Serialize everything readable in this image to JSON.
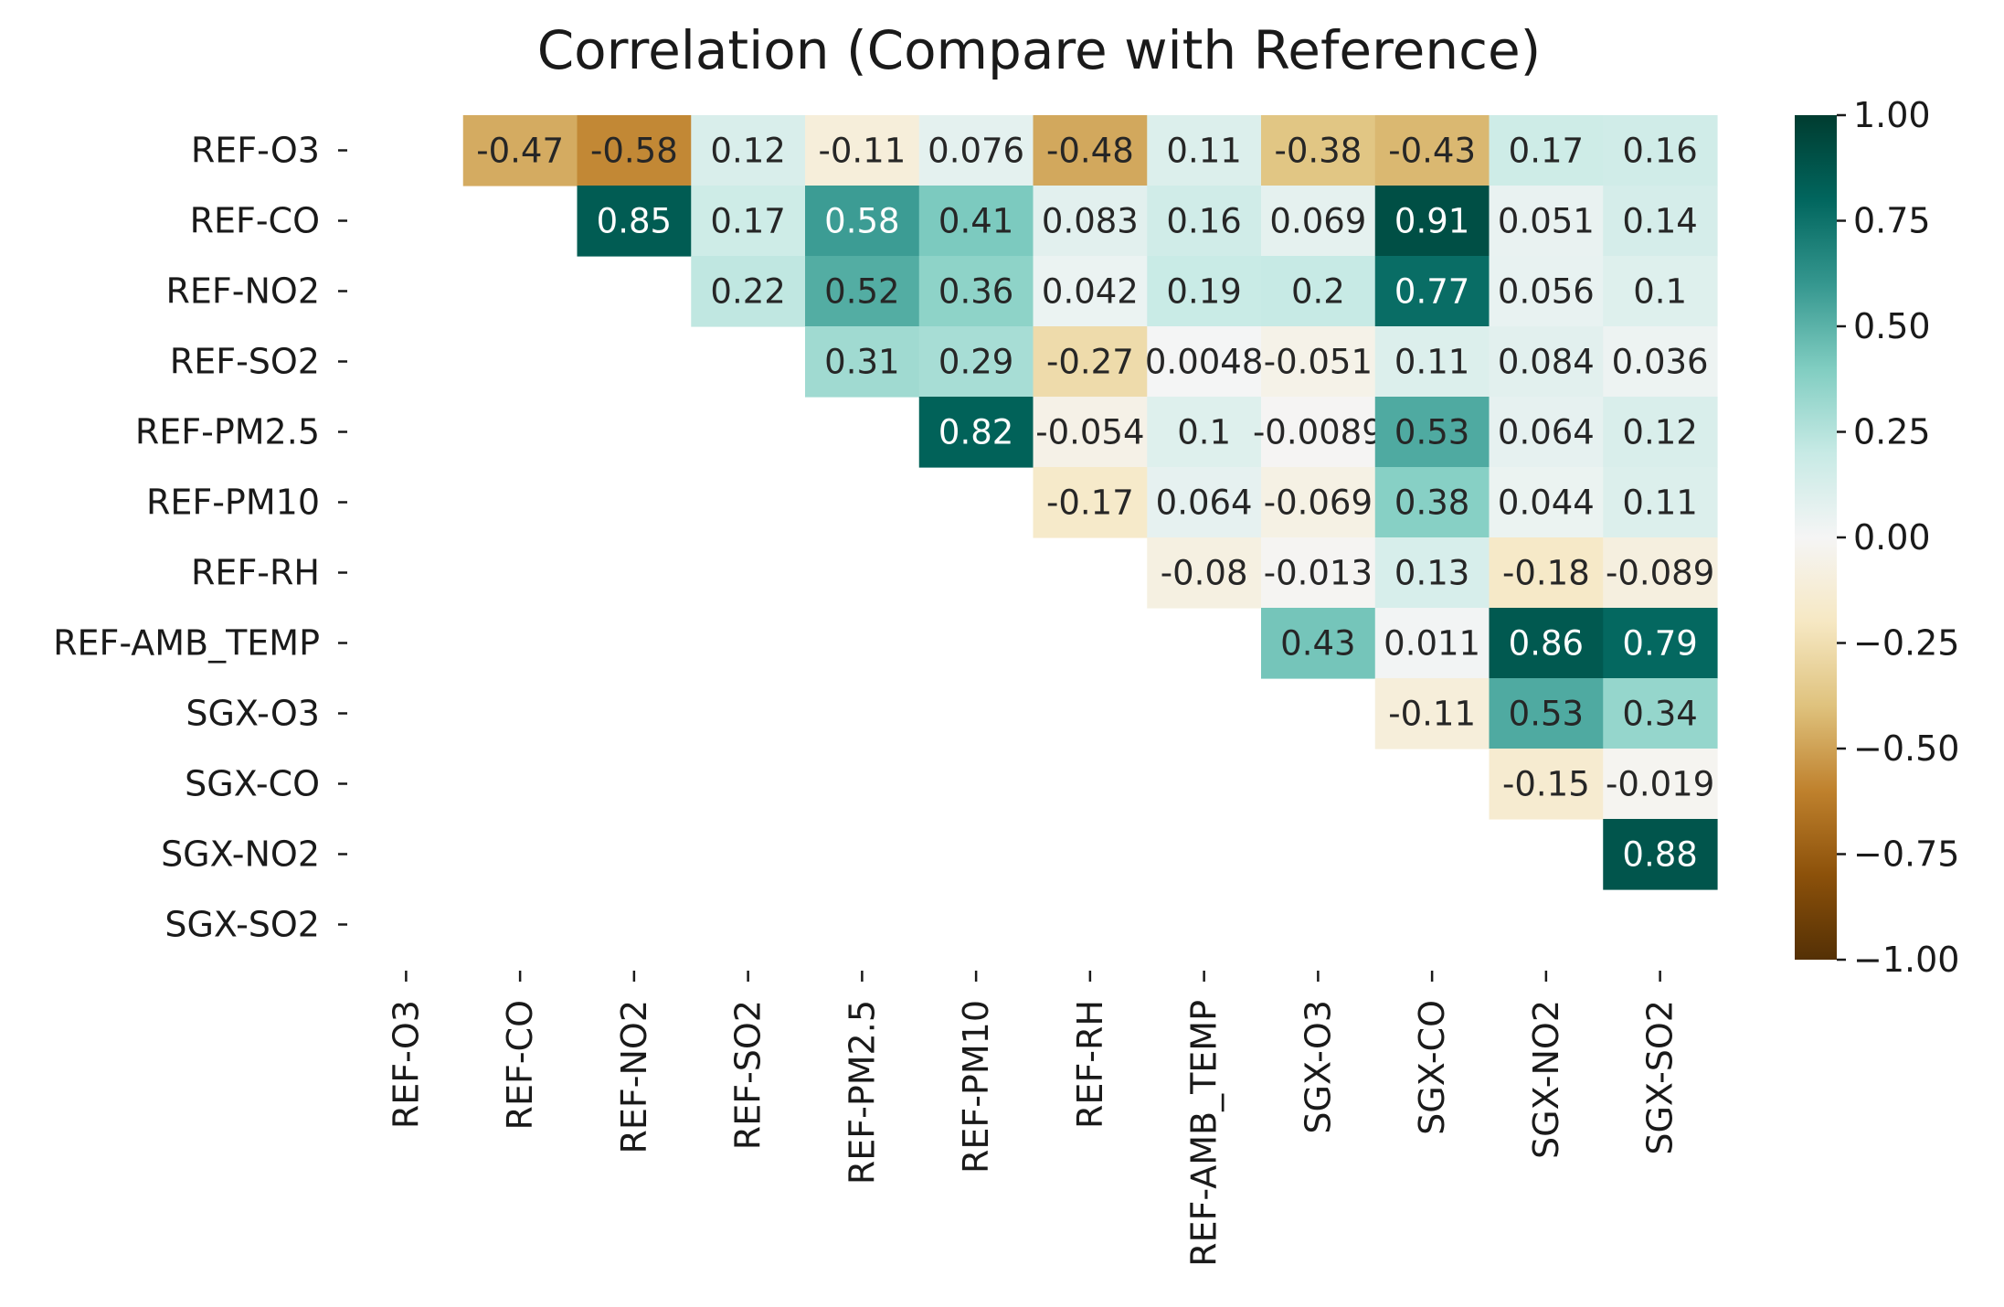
{
  "chart_data": {
    "type": "heatmap",
    "title": "Correlation (Compare with Reference)",
    "xlabel": "",
    "ylabel": "",
    "rows": [
      "REF-O3",
      "REF-CO",
      "REF-NO2",
      "REF-SO2",
      "REF-PM2.5",
      "REF-PM10",
      "REF-RH",
      "REF-AMB_TEMP",
      "SGX-O3",
      "SGX-CO",
      "SGX-NO2",
      "SGX-SO2"
    ],
    "columns": [
      "REF-O3",
      "REF-CO",
      "REF-NO2",
      "REF-SO2",
      "REF-PM2.5",
      "REF-PM10",
      "REF-RH",
      "REF-AMB_TEMP",
      "SGX-O3",
      "SGX-CO",
      "SGX-NO2",
      "SGX-SO2"
    ],
    "mask": "lower-triangle-and-diagonal",
    "values": [
      [
        null,
        -0.47,
        -0.58,
        0.12,
        -0.11,
        0.076,
        -0.48,
        0.11,
        -0.38,
        -0.43,
        0.17,
        0.16
      ],
      [
        null,
        null,
        0.85,
        0.17,
        0.58,
        0.41,
        0.083,
        0.16,
        0.069,
        0.91,
        0.051,
        0.14
      ],
      [
        null,
        null,
        null,
        0.22,
        0.52,
        0.36,
        0.042,
        0.19,
        0.2,
        0.77,
        0.056,
        0.1
      ],
      [
        null,
        null,
        null,
        null,
        0.31,
        0.29,
        -0.27,
        0.0048,
        -0.051,
        0.11,
        0.084,
        0.036
      ],
      [
        null,
        null,
        null,
        null,
        null,
        0.82,
        -0.054,
        0.1,
        -0.0089,
        0.53,
        0.064,
        0.12
      ],
      [
        null,
        null,
        null,
        null,
        null,
        null,
        -0.17,
        0.064,
        -0.069,
        0.38,
        0.044,
        0.11
      ],
      [
        null,
        null,
        null,
        null,
        null,
        null,
        null,
        -0.08,
        -0.013,
        0.13,
        -0.18,
        -0.089
      ],
      [
        null,
        null,
        null,
        null,
        null,
        null,
        null,
        null,
        0.43,
        0.011,
        0.86,
        0.79
      ],
      [
        null,
        null,
        null,
        null,
        null,
        null,
        null,
        null,
        null,
        -0.11,
        0.53,
        0.34
      ],
      [
        null,
        null,
        null,
        null,
        null,
        null,
        null,
        null,
        null,
        null,
        -0.15,
        -0.019
      ],
      [
        null,
        null,
        null,
        null,
        null,
        null,
        null,
        null,
        null,
        null,
        null,
        0.88
      ],
      [
        null,
        null,
        null,
        null,
        null,
        null,
        null,
        null,
        null,
        null,
        null,
        null
      ]
    ],
    "labels": [
      [
        "",
        "-0.47",
        "-0.58",
        "0.12",
        "-0.11",
        "0.076",
        "-0.48",
        "0.11",
        "-0.38",
        "-0.43",
        "0.17",
        "0.16"
      ],
      [
        "",
        "",
        "0.85",
        "0.17",
        "0.58",
        "0.41",
        "0.083",
        "0.16",
        "0.069",
        "0.91",
        "0.051",
        "0.14"
      ],
      [
        "",
        "",
        "",
        "0.22",
        "0.52",
        "0.36",
        "0.042",
        "0.19",
        "0.2",
        "0.77",
        "0.056",
        "0.1"
      ],
      [
        "",
        "",
        "",
        "",
        "0.31",
        "0.29",
        "-0.27",
        "0.0048",
        "-0.051",
        "0.11",
        "0.084",
        "0.036"
      ],
      [
        "",
        "",
        "",
        "",
        "",
        "0.82",
        "-0.054",
        "0.1",
        "-0.0089",
        "0.53",
        "0.064",
        "0.12"
      ],
      [
        "",
        "",
        "",
        "",
        "",
        "",
        "-0.17",
        "0.064",
        "-0.069",
        "0.38",
        "0.044",
        "0.11"
      ],
      [
        "",
        "",
        "",
        "",
        "",
        "",
        "",
        "-0.08",
        "-0.013",
        "0.13",
        "-0.18",
        "-0.089"
      ],
      [
        "",
        "",
        "",
        "",
        "",
        "",
        "",
        "",
        "0.43",
        "0.011",
        "0.86",
        "0.79"
      ],
      [
        "",
        "",
        "",
        "",
        "",
        "",
        "",
        "",
        "",
        "-0.11",
        "0.53",
        "0.34"
      ],
      [
        "",
        "",
        "",
        "",
        "",
        "",
        "",
        "",
        "",
        "",
        "-0.15",
        "-0.019"
      ],
      [
        "",
        "",
        "",
        "",
        "",
        "",
        "",
        "",
        "",
        "",
        "",
        "0.88"
      ],
      [
        "",
        "",
        "",
        "",
        "",
        "",
        "",
        "",
        "",
        "",
        "",
        ""
      ]
    ],
    "vmin": -1,
    "vmax": 1,
    "colormap": "BrBG",
    "colormap_stops": [
      "#543005",
      "#8c510a",
      "#bf812d",
      "#dfc27d",
      "#f6e8c3",
      "#f5f5f5",
      "#c7eae5",
      "#80cdc1",
      "#35978f",
      "#01665e",
      "#003c30"
    ],
    "colorbar_ticks": [
      1.0,
      0.75,
      0.5,
      0.25,
      0.0,
      -0.25,
      -0.5,
      -0.75,
      -1.0
    ],
    "colorbar_tick_labels": [
      "1.00",
      "0.75",
      "0.50",
      "0.25",
      "0.00",
      "−0.25",
      "−0.50",
      "−0.75",
      "−1.00"
    ],
    "legend": "colorbar-right"
  }
}
